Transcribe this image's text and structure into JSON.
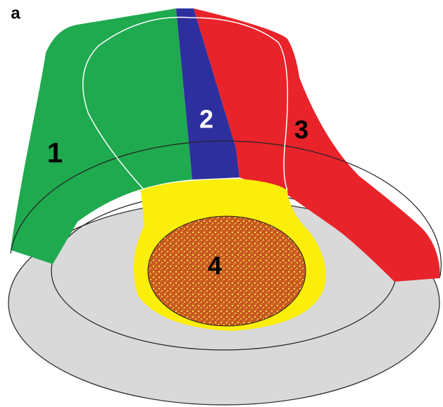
{
  "panel_label": "a",
  "regions": [
    {
      "label": "1"
    },
    {
      "label": "2"
    },
    {
      "label": "3"
    },
    {
      "label": "4"
    }
  ]
}
